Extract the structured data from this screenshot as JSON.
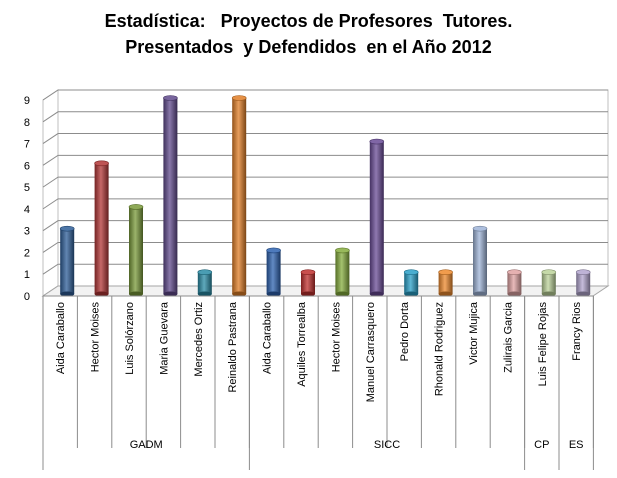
{
  "chart_data": {
    "type": "bar",
    "title_line1": "Estadística:   Proyectos de Profesores  Tutores.",
    "title_line2": "Presentados  y Defendidos  en el Año 2012",
    "xlabel": "",
    "ylabel": "",
    "ylim": [
      0,
      9
    ],
    "yticks": [
      "0",
      "1",
      "2",
      "3",
      "4",
      "5",
      "6",
      "7",
      "8",
      "9"
    ],
    "grid": true,
    "legend": "none",
    "categories": [
      "Aida Caraballo",
      "Hector Moises",
      "Luis Solórzano",
      "Maria Guevara",
      "Mercedes Ortiz",
      "Reinaldo Pastrana",
      "Aida Caraballo",
      "Aquiles Torrealba",
      "Hector Moises",
      "Manuel Carrasquero",
      "Pedro Dorta",
      "Rhonald Rodriguez",
      "Victor Mujica",
      "Zulirais Garcia",
      "Luis Felipe Rojas",
      "Francy Rios"
    ],
    "values": [
      3,
      6,
      4,
      9,
      1,
      9,
      2,
      1,
      2,
      7,
      1,
      1,
      3,
      1,
      1,
      1
    ],
    "colors": [
      "#2e5e98",
      "#b33636",
      "#7a9a3a",
      "#604a8c",
      "#2a8ca6",
      "#e07e26",
      "#2e63b0",
      "#c0302e",
      "#86ad3e",
      "#6a4b96",
      "#2aa0c8",
      "#ee8a2e",
      "#9fb4d8",
      "#e0a3a3",
      "#bcd39a",
      "#b3a6cf"
    ],
    "groups": [
      {
        "name": "GADM",
        "count": 6
      },
      {
        "name": "SICC",
        "count": 8
      },
      {
        "name": "CP",
        "count": 1
      },
      {
        "name": "ES",
        "count": 1
      }
    ]
  }
}
